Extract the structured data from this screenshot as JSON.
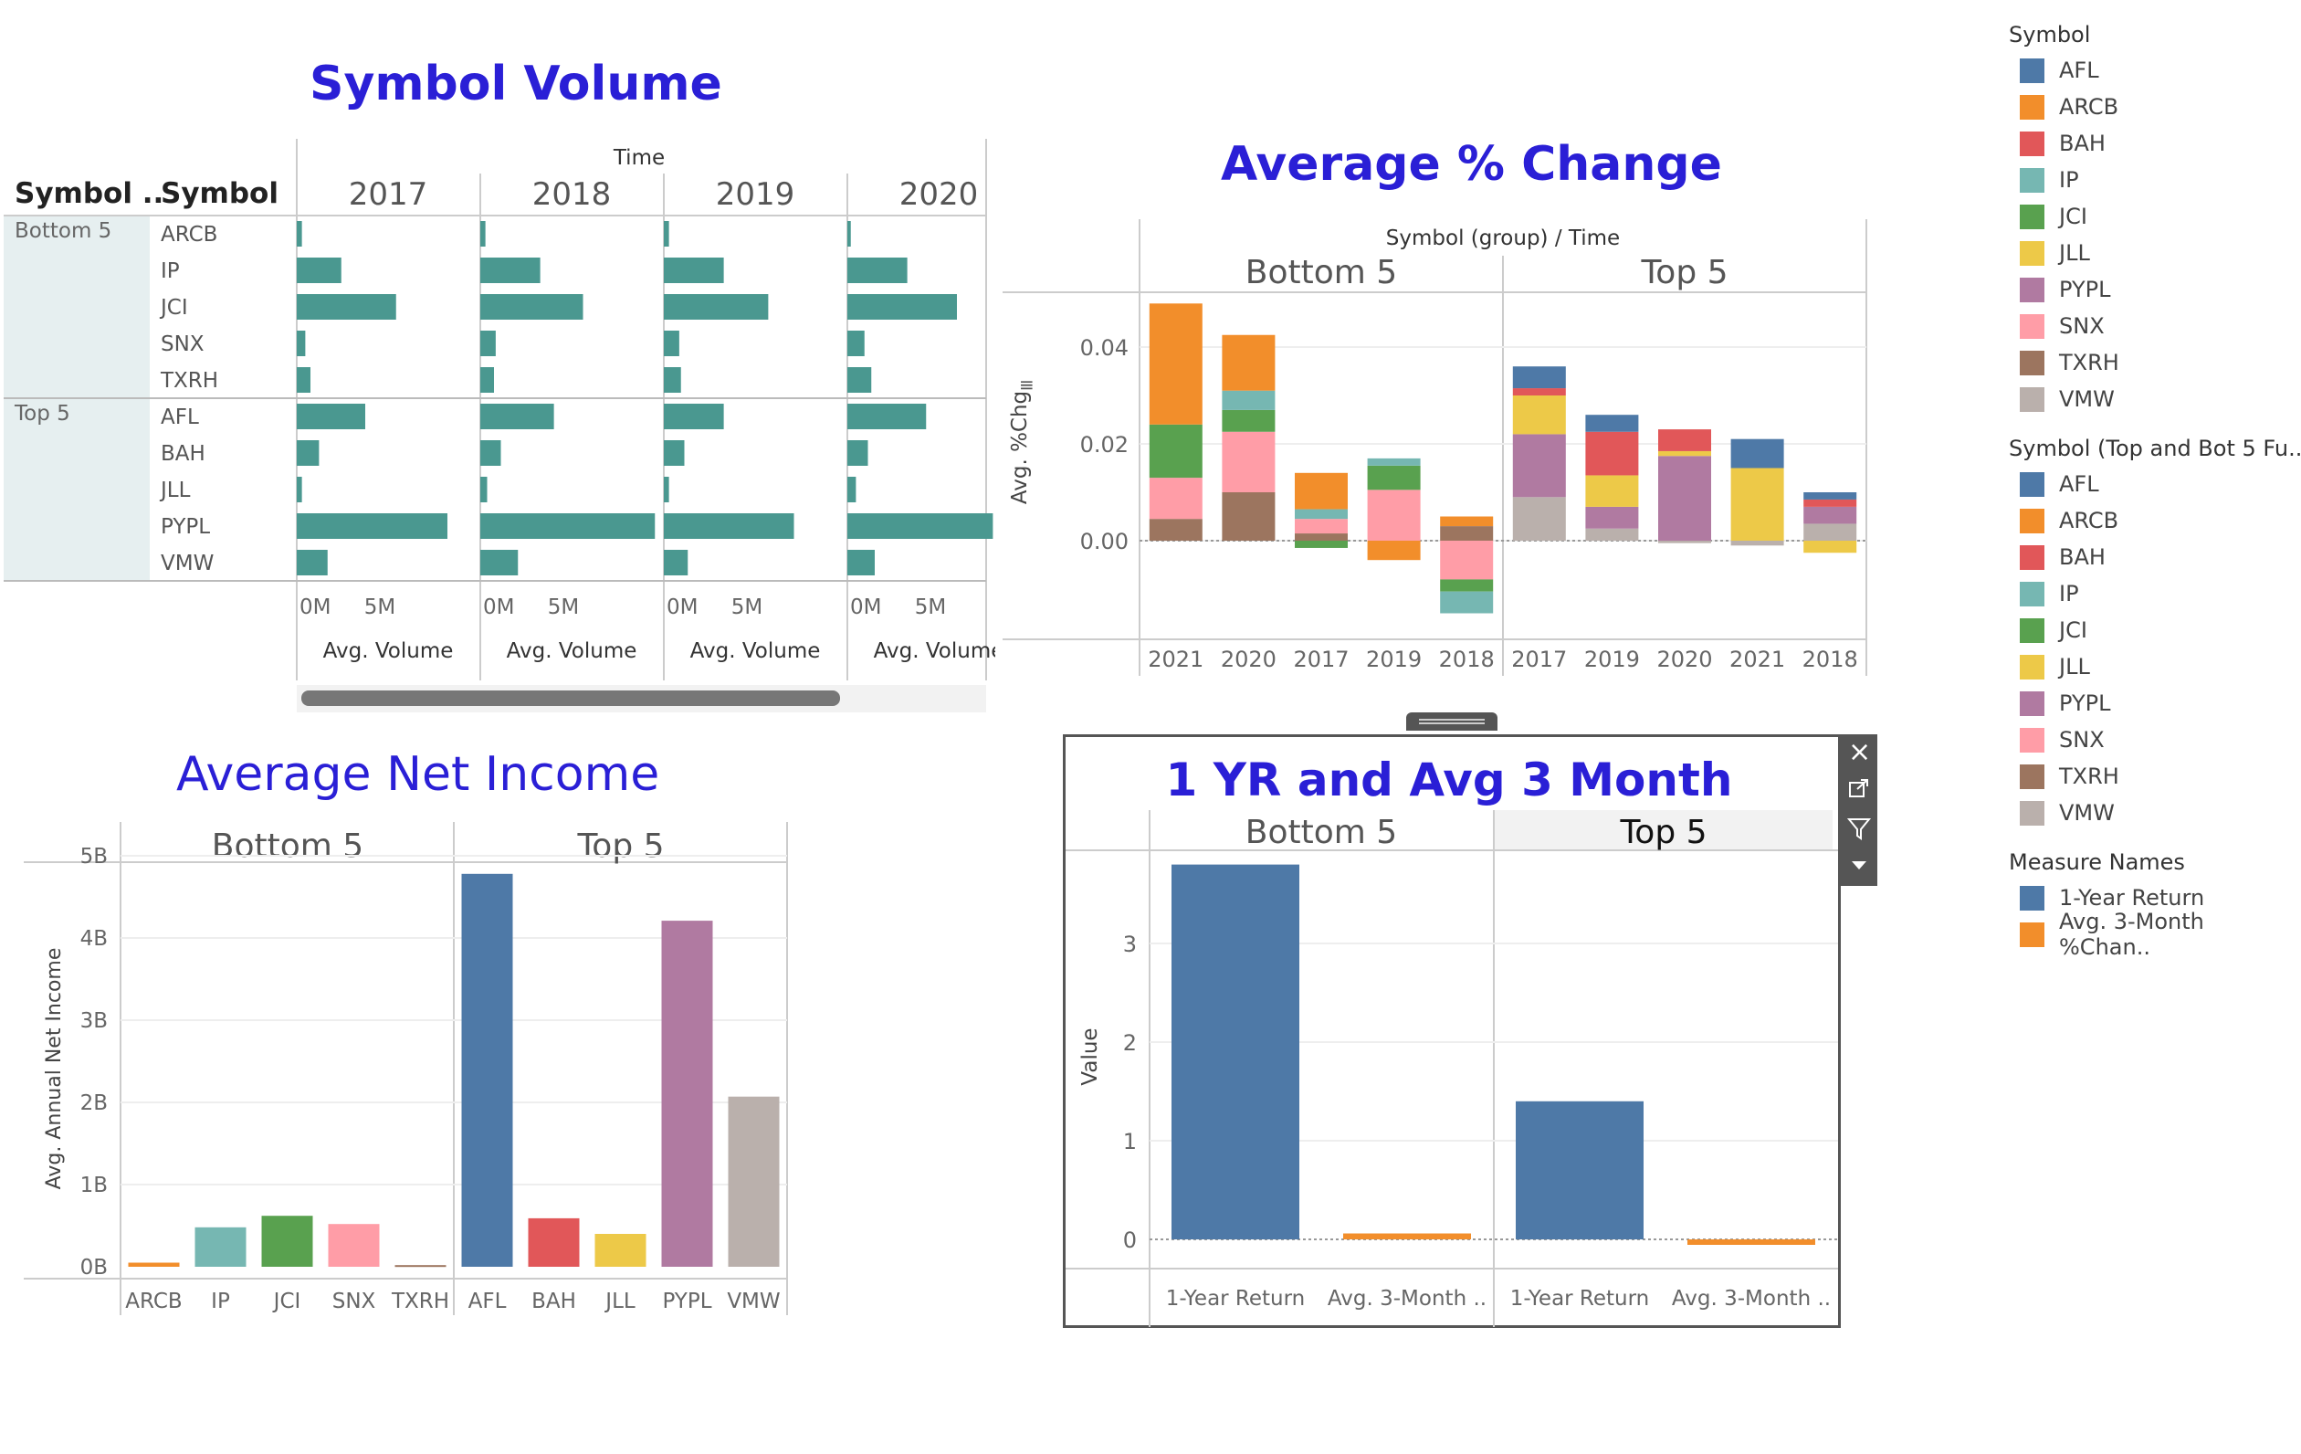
{
  "colors": {
    "AFL": "#4e79a7",
    "ARCB": "#f28e2b",
    "BAH": "#e15759",
    "IP": "#76b7b2",
    "JCI": "#59a14f",
    "JLL": "#edc948",
    "PYPL": "#b07aa1",
    "SNX": "#ff9da7",
    "TXRH": "#9c755f",
    "VMW": "#bab0ac",
    "volume_bar": "#4a9890",
    "title": "#2a1fd6"
  },
  "legends": {
    "symbol": {
      "title": "Symbol",
      "items": [
        "AFL",
        "ARCB",
        "BAH",
        "IP",
        "JCI",
        "JLL",
        "PYPL",
        "SNX",
        "TXRH",
        "VMW"
      ]
    },
    "symbol_group": {
      "title": "Symbol (Top and Bot 5  Fu..",
      "items": [
        "AFL",
        "ARCB",
        "BAH",
        "IP",
        "JCI",
        "JLL",
        "PYPL",
        "SNX",
        "TXRH",
        "VMW"
      ]
    },
    "measure_names": {
      "title": "Measure Names",
      "items": [
        {
          "label": "1-Year Return",
          "color": "#4e79a7"
        },
        {
          "label": "Avg. 3-Month %Chan..",
          "color": "#f28e2b"
        }
      ]
    }
  },
  "panel_toolbar": {
    "close_icon": "close-icon",
    "popout_icon": "popout-icon",
    "filter_icon": "filter-icon",
    "menu_icon": "dropdown-icon"
  },
  "chart_data": [
    {
      "id": "volume",
      "type": "bar",
      "title": "Symbol Volume",
      "row_headers": [
        "Symbol ..",
        "Symbol"
      ],
      "column_header": "Time",
      "columns": [
        "2017",
        "2018",
        "2019",
        "2020"
      ],
      "groups": [
        {
          "name": "Bottom 5",
          "symbols": [
            "ARCB",
            "IP",
            "JCI",
            "SNX",
            "TXRH"
          ]
        },
        {
          "name": "Top 5",
          "symbols": [
            "AFL",
            "BAH",
            "JLL",
            "PYPL",
            "VMW"
          ]
        }
      ],
      "values_by_year": {
        "2017": [
          0.3,
          2.6,
          5.8,
          0.5,
          0.8,
          4.0,
          1.3,
          0.3,
          8.8,
          1.8
        ],
        "2018": [
          0.3,
          3.5,
          6.0,
          0.9,
          0.8,
          4.3,
          1.2,
          0.4,
          10.2,
          2.2
        ],
        "2019": [
          0.3,
          3.5,
          6.1,
          0.9,
          1.0,
          3.5,
          1.2,
          0.3,
          7.6,
          1.4
        ],
        "2020": [
          0.2,
          3.5,
          6.4,
          1.0,
          1.4,
          4.6,
          1.2,
          0.5,
          8.5,
          1.6
        ]
      },
      "x_ticks": [
        "0M",
        "5M"
      ],
      "xlabel": "Avg. Volume",
      "xlim": [
        0,
        8.8
      ]
    },
    {
      "id": "pct_change",
      "type": "bar",
      "stacked": true,
      "title": "Average % Change",
      "header": "Symbol (group)  /  Time",
      "panels": [
        "Bottom 5",
        "Top 5"
      ],
      "ylabel": "Avg. %Chg",
      "yticks": [
        "0.04",
        "0.02",
        "0.00"
      ],
      "ylim": [
        -0.016,
        0.052
      ],
      "bars": [
        {
          "panel": "Bottom 5",
          "x": "2021",
          "stack": {
            "TXRH": 0.0045,
            "SNX": 0.0085,
            "JCI": 0.011,
            "ARCB": 0.025
          }
        },
        {
          "panel": "Bottom 5",
          "x": "2020",
          "stack": {
            "TXRH": 0.01,
            "SNX": 0.0125,
            "JCI": 0.0045,
            "IP": 0.004,
            "ARCB": 0.0115
          }
        },
        {
          "panel": "Bottom 5",
          "x": "2017",
          "stack": {
            "TXRH": 0.0015,
            "SNX": 0.003,
            "IP": 0.002,
            "ARCB": 0.0075,
            "JCI": -0.0015
          }
        },
        {
          "panel": "Bottom 5",
          "x": "2019",
          "stack": {
            "SNX": 0.0105,
            "JCI": 0.005,
            "IP": 0.0015,
            "ARCB": -0.004
          }
        },
        {
          "panel": "Bottom 5",
          "x": "2018",
          "stack": {
            "TXRH": 0.003,
            "ARCB": 0.002,
            "SNX": -0.008,
            "JCI": -0.0025,
            "IP": -0.0045
          }
        },
        {
          "panel": "Top 5",
          "x": "2017",
          "stack": {
            "VMW": 0.009,
            "PYPL": 0.013,
            "JLL": 0.008,
            "BAH": 0.0015,
            "AFL": 0.0045
          }
        },
        {
          "panel": "Top 5",
          "x": "2019",
          "stack": {
            "VMW": 0.0025,
            "PYPL": 0.0045,
            "JLL": 0.0065,
            "BAH": 0.009,
            "AFL": 0.0035
          }
        },
        {
          "panel": "Top 5",
          "x": "2020",
          "stack": {
            "PYPL": 0.0175,
            "JLL": 0.001,
            "BAH": 0.0045,
            "VMW": -0.0005
          }
        },
        {
          "panel": "Top 5",
          "x": "2021",
          "stack": {
            "JLL": 0.015,
            "AFL": 0.006,
            "VMW": -0.001
          }
        },
        {
          "panel": "Top 5",
          "x": "2018",
          "stack": {
            "VMW": 0.0035,
            "PYPL": 0.0035,
            "BAH": 0.0015,
            "AFL": 0.0015,
            "JLL": -0.0025
          }
        }
      ]
    },
    {
      "id": "net_income",
      "type": "bar",
      "title": "Average Net Income",
      "panels": [
        "Bottom 5",
        "Top 5"
      ],
      "ylabel": "Avg. Annual Net Income",
      "yticks": [
        "5B",
        "4B",
        "3B",
        "2B",
        "1B",
        "0B"
      ],
      "ylim": [
        0,
        5
      ],
      "categories": [
        "ARCB",
        "IP",
        "JCI",
        "SNX",
        "TXRH",
        "AFL",
        "BAH",
        "JLL",
        "PYPL",
        "VMW"
      ],
      "panel_of": [
        "Bottom 5",
        "Bottom 5",
        "Bottom 5",
        "Bottom 5",
        "Bottom 5",
        "Top 5",
        "Top 5",
        "Top 5",
        "Top 5",
        "Top 5"
      ],
      "values": [
        0.05,
        0.48,
        0.62,
        0.52,
        0.02,
        4.78,
        0.59,
        0.4,
        4.21,
        2.07
      ]
    },
    {
      "id": "return",
      "type": "bar",
      "title": "1 YR and Avg 3 Month",
      "panels": [
        "Bottom 5",
        "Top 5"
      ],
      "ylabel": "Value",
      "yticks": [
        "3",
        "2",
        "1",
        "0"
      ],
      "ylim": [
        -0.1,
        3.95
      ],
      "categories": [
        "1-Year Return",
        "Avg. 3-Month .."
      ],
      "series": [
        {
          "panel": "Bottom 5",
          "values": [
            3.8,
            0.06
          ]
        },
        {
          "panel": "Top 5",
          "values": [
            1.4,
            -0.05
          ]
        }
      ]
    }
  ]
}
